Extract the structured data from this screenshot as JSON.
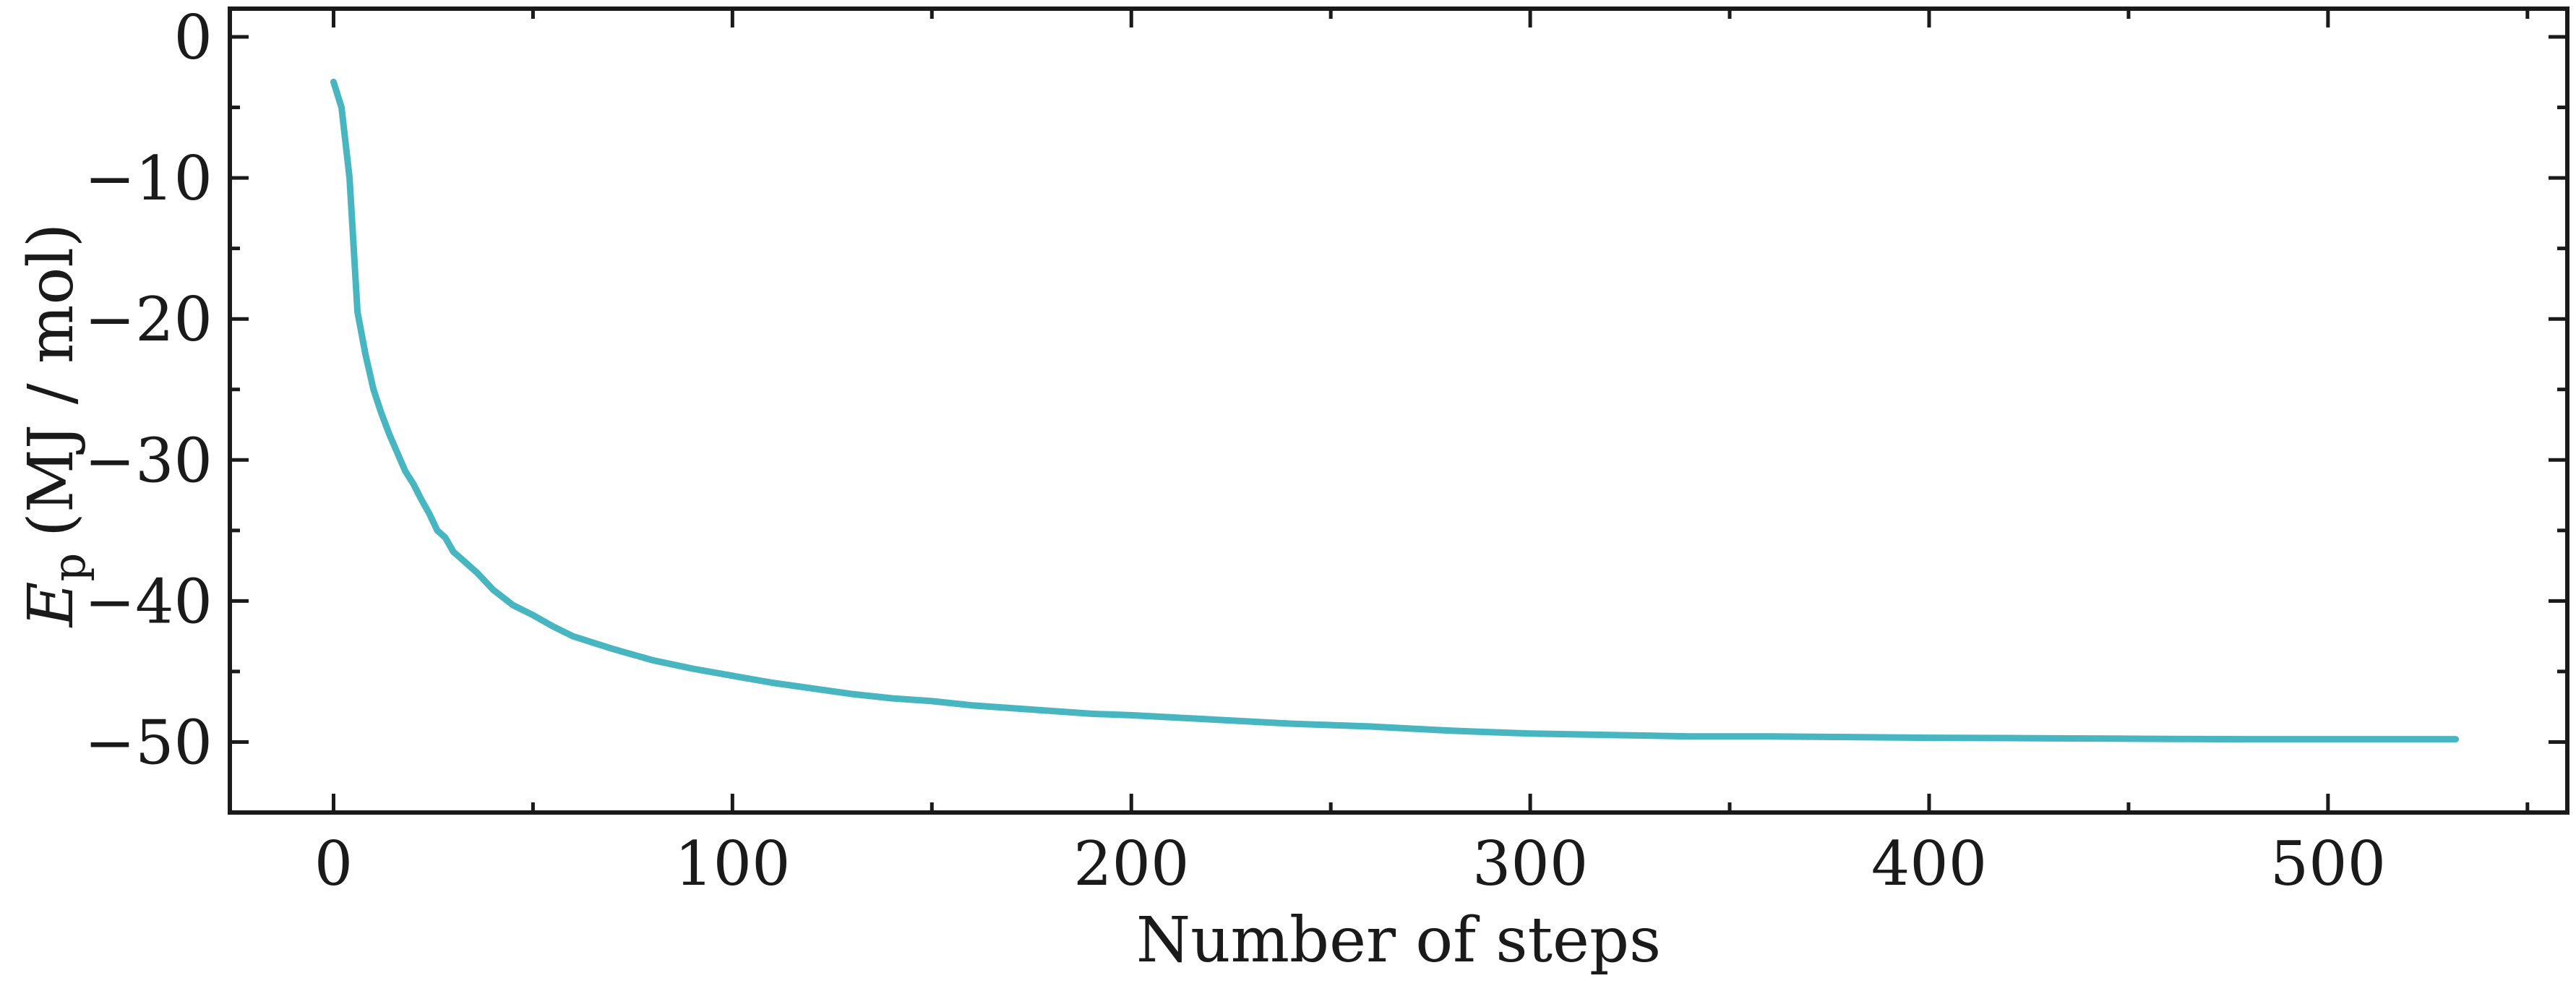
{
  "chart_data": {
    "type": "line",
    "xlabel": "Number of steps",
    "ylabel": {
      "symbol": "E",
      "subscript": "p",
      "unit": "(MJ / mol)"
    },
    "xlim": [
      -26,
      560
    ],
    "ylim": [
      -55,
      2
    ],
    "x_ticks_major": [
      0,
      100,
      200,
      300,
      400,
      500
    ],
    "x_ticks_minor": [
      50,
      150,
      250,
      350,
      450,
      550
    ],
    "y_ticks_major": [
      0,
      -10,
      -20,
      -30,
      -40,
      -50
    ],
    "y_ticks_minor": [
      -5,
      -15,
      -25,
      -35,
      -45
    ],
    "x_tick_labels": [
      "0",
      "100",
      "200",
      "300",
      "400",
      "500"
    ],
    "y_tick_labels": [
      "0",
      "−10",
      "−20",
      "−30",
      "−40",
      "−50"
    ],
    "grid": false,
    "legend": "none",
    "series": [
      {
        "color": "#47b6c0",
        "x": [
          0,
          2,
          4,
          6,
          8,
          10,
          12,
          14,
          16,
          18,
          20,
          22,
          24,
          26,
          28,
          30,
          32,
          34,
          36,
          38,
          40,
          45,
          50,
          55,
          60,
          70,
          80,
          90,
          100,
          110,
          120,
          130,
          140,
          150,
          160,
          170,
          180,
          190,
          200,
          220,
          240,
          260,
          280,
          300,
          320,
          340,
          360,
          380,
          400,
          420,
          440,
          460,
          480,
          500,
          520,
          532
        ],
        "y": [
          -3.2,
          -5,
          -10,
          -19.5,
          -22.5,
          -25,
          -26.7,
          -28.2,
          -29.5,
          -30.8,
          -31.7,
          -32.8,
          -33.8,
          -35,
          -35.5,
          -36.5,
          -37,
          -37.5,
          -38,
          -38.6,
          -39.2,
          -40.3,
          -41,
          -41.8,
          -42.5,
          -43.4,
          -44.2,
          -44.8,
          -45.3,
          -45.8,
          -46.2,
          -46.6,
          -46.9,
          -47.1,
          -47.4,
          -47.6,
          -47.8,
          -48,
          -48.1,
          -48.4,
          -48.7,
          -48.9,
          -49.2,
          -49.4,
          -49.5,
          -49.6,
          -49.6,
          -49.65,
          -49.7,
          -49.72,
          -49.75,
          -49.78,
          -49.8,
          -49.8,
          -49.8,
          -49.8
        ]
      }
    ]
  }
}
